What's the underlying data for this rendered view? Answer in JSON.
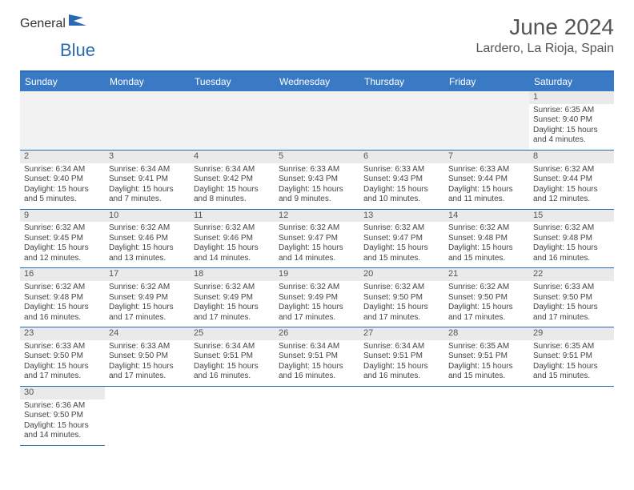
{
  "logo": {
    "text1": "General",
    "text2": "Blue"
  },
  "header": {
    "title": "June 2024",
    "location": "Lardero, La Rioja, Spain"
  },
  "colors": {
    "accent": "#3a7ac4",
    "border": "#2a6ab3",
    "text": "#444",
    "graybg": "#eaeaea",
    "blankbg": "#f2f2f2"
  },
  "weekdays": [
    "Sunday",
    "Monday",
    "Tuesday",
    "Wednesday",
    "Thursday",
    "Friday",
    "Saturday"
  ],
  "days": [
    null,
    null,
    null,
    null,
    null,
    null,
    {
      "n": "1",
      "sr": "Sunrise: 6:35 AM",
      "ss": "Sunset: 9:40 PM",
      "d1": "Daylight: 15 hours",
      "d2": "and 4 minutes."
    },
    {
      "n": "2",
      "sr": "Sunrise: 6:34 AM",
      "ss": "Sunset: 9:40 PM",
      "d1": "Daylight: 15 hours",
      "d2": "and 5 minutes."
    },
    {
      "n": "3",
      "sr": "Sunrise: 6:34 AM",
      "ss": "Sunset: 9:41 PM",
      "d1": "Daylight: 15 hours",
      "d2": "and 7 minutes."
    },
    {
      "n": "4",
      "sr": "Sunrise: 6:34 AM",
      "ss": "Sunset: 9:42 PM",
      "d1": "Daylight: 15 hours",
      "d2": "and 8 minutes."
    },
    {
      "n": "5",
      "sr": "Sunrise: 6:33 AM",
      "ss": "Sunset: 9:43 PM",
      "d1": "Daylight: 15 hours",
      "d2": "and 9 minutes."
    },
    {
      "n": "6",
      "sr": "Sunrise: 6:33 AM",
      "ss": "Sunset: 9:43 PM",
      "d1": "Daylight: 15 hours",
      "d2": "and 10 minutes."
    },
    {
      "n": "7",
      "sr": "Sunrise: 6:33 AM",
      "ss": "Sunset: 9:44 PM",
      "d1": "Daylight: 15 hours",
      "d2": "and 11 minutes."
    },
    {
      "n": "8",
      "sr": "Sunrise: 6:32 AM",
      "ss": "Sunset: 9:44 PM",
      "d1": "Daylight: 15 hours",
      "d2": "and 12 minutes."
    },
    {
      "n": "9",
      "sr": "Sunrise: 6:32 AM",
      "ss": "Sunset: 9:45 PM",
      "d1": "Daylight: 15 hours",
      "d2": "and 12 minutes."
    },
    {
      "n": "10",
      "sr": "Sunrise: 6:32 AM",
      "ss": "Sunset: 9:46 PM",
      "d1": "Daylight: 15 hours",
      "d2": "and 13 minutes."
    },
    {
      "n": "11",
      "sr": "Sunrise: 6:32 AM",
      "ss": "Sunset: 9:46 PM",
      "d1": "Daylight: 15 hours",
      "d2": "and 14 minutes."
    },
    {
      "n": "12",
      "sr": "Sunrise: 6:32 AM",
      "ss": "Sunset: 9:47 PM",
      "d1": "Daylight: 15 hours",
      "d2": "and 14 minutes."
    },
    {
      "n": "13",
      "sr": "Sunrise: 6:32 AM",
      "ss": "Sunset: 9:47 PM",
      "d1": "Daylight: 15 hours",
      "d2": "and 15 minutes."
    },
    {
      "n": "14",
      "sr": "Sunrise: 6:32 AM",
      "ss": "Sunset: 9:48 PM",
      "d1": "Daylight: 15 hours",
      "d2": "and 15 minutes."
    },
    {
      "n": "15",
      "sr": "Sunrise: 6:32 AM",
      "ss": "Sunset: 9:48 PM",
      "d1": "Daylight: 15 hours",
      "d2": "and 16 minutes."
    },
    {
      "n": "16",
      "sr": "Sunrise: 6:32 AM",
      "ss": "Sunset: 9:48 PM",
      "d1": "Daylight: 15 hours",
      "d2": "and 16 minutes."
    },
    {
      "n": "17",
      "sr": "Sunrise: 6:32 AM",
      "ss": "Sunset: 9:49 PM",
      "d1": "Daylight: 15 hours",
      "d2": "and 17 minutes."
    },
    {
      "n": "18",
      "sr": "Sunrise: 6:32 AM",
      "ss": "Sunset: 9:49 PM",
      "d1": "Daylight: 15 hours",
      "d2": "and 17 minutes."
    },
    {
      "n": "19",
      "sr": "Sunrise: 6:32 AM",
      "ss": "Sunset: 9:49 PM",
      "d1": "Daylight: 15 hours",
      "d2": "and 17 minutes."
    },
    {
      "n": "20",
      "sr": "Sunrise: 6:32 AM",
      "ss": "Sunset: 9:50 PM",
      "d1": "Daylight: 15 hours",
      "d2": "and 17 minutes."
    },
    {
      "n": "21",
      "sr": "Sunrise: 6:32 AM",
      "ss": "Sunset: 9:50 PM",
      "d1": "Daylight: 15 hours",
      "d2": "and 17 minutes."
    },
    {
      "n": "22",
      "sr": "Sunrise: 6:33 AM",
      "ss": "Sunset: 9:50 PM",
      "d1": "Daylight: 15 hours",
      "d2": "and 17 minutes."
    },
    {
      "n": "23",
      "sr": "Sunrise: 6:33 AM",
      "ss": "Sunset: 9:50 PM",
      "d1": "Daylight: 15 hours",
      "d2": "and 17 minutes."
    },
    {
      "n": "24",
      "sr": "Sunrise: 6:33 AM",
      "ss": "Sunset: 9:50 PM",
      "d1": "Daylight: 15 hours",
      "d2": "and 17 minutes."
    },
    {
      "n": "25",
      "sr": "Sunrise: 6:34 AM",
      "ss": "Sunset: 9:51 PM",
      "d1": "Daylight: 15 hours",
      "d2": "and 16 minutes."
    },
    {
      "n": "26",
      "sr": "Sunrise: 6:34 AM",
      "ss": "Sunset: 9:51 PM",
      "d1": "Daylight: 15 hours",
      "d2": "and 16 minutes."
    },
    {
      "n": "27",
      "sr": "Sunrise: 6:34 AM",
      "ss": "Sunset: 9:51 PM",
      "d1": "Daylight: 15 hours",
      "d2": "and 16 minutes."
    },
    {
      "n": "28",
      "sr": "Sunrise: 6:35 AM",
      "ss": "Sunset: 9:51 PM",
      "d1": "Daylight: 15 hours",
      "d2": "and 15 minutes."
    },
    {
      "n": "29",
      "sr": "Sunrise: 6:35 AM",
      "ss": "Sunset: 9:51 PM",
      "d1": "Daylight: 15 hours",
      "d2": "and 15 minutes."
    },
    {
      "n": "30",
      "sr": "Sunrise: 6:36 AM",
      "ss": "Sunset: 9:50 PM",
      "d1": "Daylight: 15 hours",
      "d2": "and 14 minutes."
    }
  ]
}
